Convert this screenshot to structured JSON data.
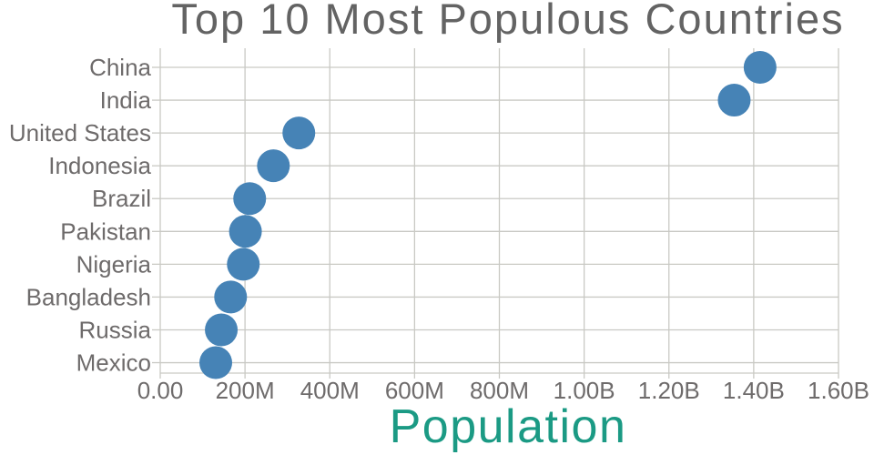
{
  "chart_data": {
    "type": "scatter",
    "variant": "horizontal-dot-plot",
    "title": "Top 10 Most Populous Countries",
    "xlabel": "Population",
    "ylabel": "",
    "categories": [
      "China",
      "India",
      "United States",
      "Indonesia",
      "Brazil",
      "Pakistan",
      "Nigeria",
      "Bangladesh",
      "Russia",
      "Mexico"
    ],
    "values": [
      1415000000,
      1354000000,
      327000000,
      267000000,
      211000000,
      201000000,
      196000000,
      166000000,
      144000000,
      131000000
    ],
    "x_tick_values": [
      0,
      200000000,
      400000000,
      600000000,
      800000000,
      1000000000,
      1200000000,
      1400000000,
      1600000000
    ],
    "x_tick_labels": [
      "0.00",
      "200M",
      "400M",
      "600M",
      "800M",
      "1.00B",
      "1.20B",
      "1.40B",
      "1.60B"
    ],
    "xlim": [
      0,
      1600000000
    ],
    "grid": true,
    "legend": "none",
    "marker": {
      "shape": "circle",
      "radius": 18,
      "color": "#4683b6"
    },
    "colors": {
      "grid": "#c9c9c4",
      "tick_text": "#6e6b6b",
      "title_text": "#636363",
      "xlabel_text": "#1b9a84",
      "background": "#ffffff"
    }
  }
}
